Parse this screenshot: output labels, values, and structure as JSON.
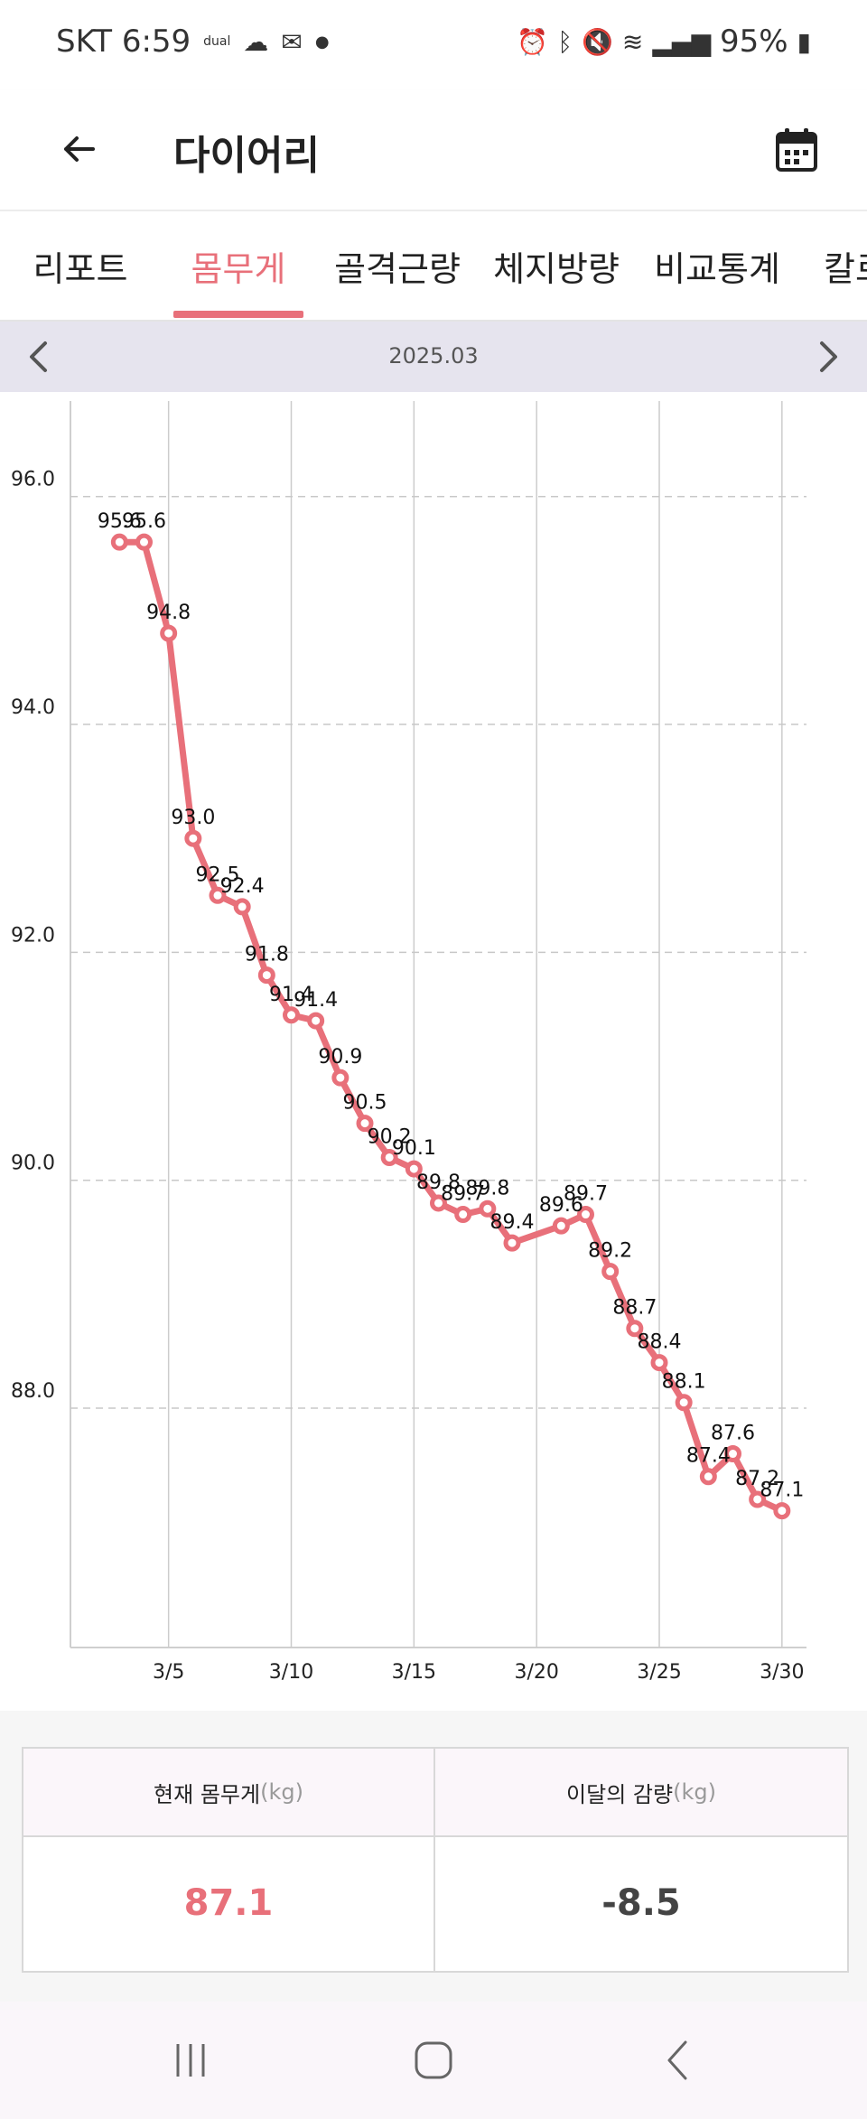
{
  "status_bar": {
    "carrier_time": "SKT 6:59",
    "battery": "95%",
    "icons_left": [
      "dual-sim-icon",
      "weather-icon",
      "gmail-icon",
      "dot-icon"
    ],
    "icons_right": [
      "alarm-icon",
      "bluetooth-icon",
      "mute-icon",
      "wifi-icon",
      "signal-icon",
      "battery-icon"
    ]
  },
  "header": {
    "title": "다이어리"
  },
  "tabs": [
    {
      "label": "리포트",
      "active": false
    },
    {
      "label": "몸무게",
      "active": true
    },
    {
      "label": "골격근량",
      "active": false
    },
    {
      "label": "체지방량",
      "active": false
    },
    {
      "label": "비교통계",
      "active": false
    },
    {
      "label": "칼로",
      "active": false
    }
  ],
  "month_nav": {
    "label": "2025.03"
  },
  "chart_data": {
    "type": "line",
    "color": "#e8707a",
    "y_ticks": [
      "96.0",
      "94.0",
      "92.0",
      "90.0",
      "88.0"
    ],
    "x_ticks": [
      "3/5",
      "3/10",
      "3/15",
      "3/20",
      "3/25",
      "3/30"
    ],
    "ylim": [
      85.9,
      96.6
    ],
    "xlim": [
      1,
      31
    ],
    "series": [
      {
        "points": [
          {
            "x": 3,
            "y": 95.6,
            "label": "95.6"
          },
          {
            "x": 4,
            "y": 95.6,
            "label": "95.6"
          },
          {
            "x": 5,
            "y": 94.8,
            "label": "94.8"
          },
          {
            "x": 6,
            "y": 93.0,
            "label": "93.0"
          },
          {
            "x": 7,
            "y": 92.5,
            "label": "92.5"
          },
          {
            "x": 8,
            "y": 92.4,
            "label": "92.4"
          },
          {
            "x": 9,
            "y": 91.8,
            "label": "91.8"
          },
          {
            "x": 10,
            "y": 91.45,
            "label": "91.4"
          },
          {
            "x": 11,
            "y": 91.4,
            "label": "91.4"
          },
          {
            "x": 12,
            "y": 90.9,
            "label": "90.9"
          },
          {
            "x": 13,
            "y": 90.5,
            "label": "90.5"
          },
          {
            "x": 14,
            "y": 90.2,
            "label": "90.2"
          },
          {
            "x": 15,
            "y": 90.1,
            "label": "90.1"
          },
          {
            "x": 16,
            "y": 89.8,
            "label": "89.8"
          },
          {
            "x": 17,
            "y": 89.7,
            "label": "89.7"
          },
          {
            "x": 18,
            "y": 89.75,
            "label": "89.8"
          },
          {
            "x": 19,
            "y": 89.45,
            "label": "89.4"
          },
          {
            "x": 21,
            "y": 89.6,
            "label": "89.6"
          },
          {
            "x": 22,
            "y": 89.7,
            "label": "89.7"
          },
          {
            "x": 23,
            "y": 89.2,
            "label": "89.2"
          },
          {
            "x": 24,
            "y": 88.7,
            "label": "88.7"
          },
          {
            "x": 25,
            "y": 88.4,
            "label": "88.4"
          },
          {
            "x": 26,
            "y": 88.05,
            "label": "88.1"
          },
          {
            "x": 27,
            "y": 87.4,
            "label": "87.4"
          },
          {
            "x": 28,
            "y": 87.6,
            "label": "87.6"
          },
          {
            "x": 29,
            "y": 87.2,
            "label": "87.2"
          },
          {
            "x": 30,
            "y": 87.1,
            "label": "87.1"
          }
        ]
      }
    ]
  },
  "summary": {
    "current_weight_label": "현재 몸무게",
    "current_weight_unit": "(kg)",
    "current_weight_value": "87.1",
    "monthly_loss_label": "이달의 감량",
    "monthly_loss_unit": "(kg)",
    "monthly_loss_value": "-8.5",
    "current_color": "#e8707a",
    "loss_color": "#444444"
  }
}
